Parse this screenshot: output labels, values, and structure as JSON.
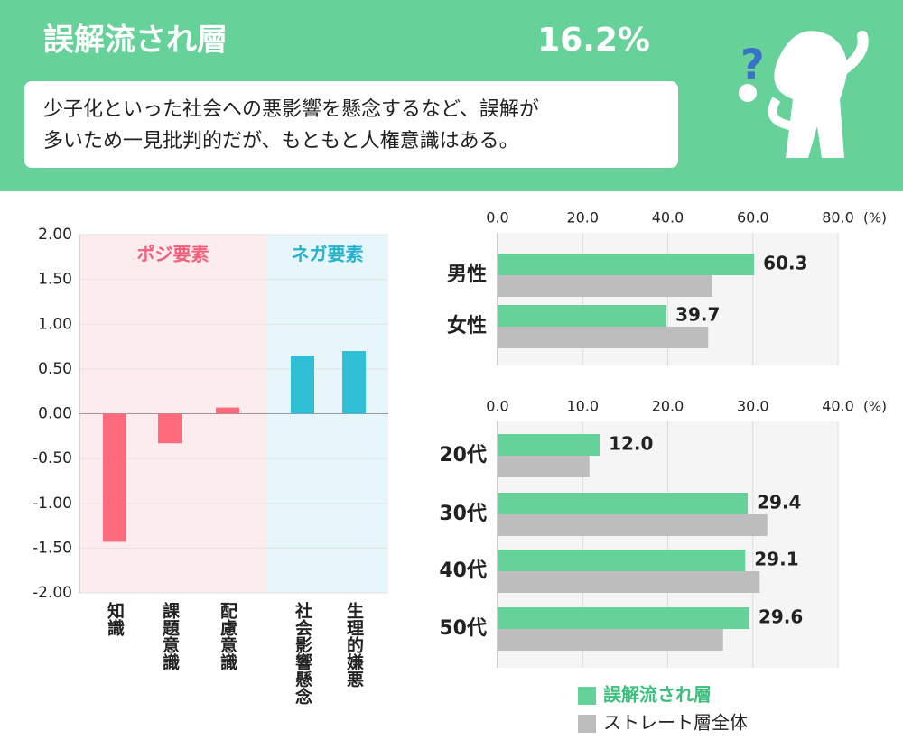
{
  "header": {
    "title": "誤解流され層",
    "share": "16.2%",
    "description": [
      "少子化といった社会への悪影響を懸念するなど、誤解が",
      "多いため一見批判的だが、もともと人権意識はある。"
    ]
  },
  "chart_data": [
    {
      "type": "bar",
      "annotations": [
        "ポジ要素",
        "ネガ要素"
      ],
      "categories": [
        "知識",
        "課題意識",
        "配慮意識",
        "社会影響懸念",
        "生理的嫌悪"
      ],
      "values": [
        -1.43,
        -0.33,
        0.07,
        0.65,
        0.7
      ],
      "colors": [
        "#ff6b7d",
        "#ff6b7d",
        "#ff6b7d",
        "#2fbfd6",
        "#2fbfd6"
      ],
      "ylim": [
        -2,
        2
      ],
      "yticks": [
        {
          "value": 2,
          "label": "2.00"
        },
        {
          "value": 1.5,
          "label": "1.50"
        },
        {
          "value": 1,
          "label": "1.00"
        },
        {
          "value": 0.5,
          "label": "0.50"
        },
        {
          "value": 0,
          "label": "0.00"
        },
        {
          "value": -0.5,
          "label": "-0.50"
        },
        {
          "value": -1,
          "label": "-1.00"
        },
        {
          "value": -1.5,
          "label": "-1.50"
        },
        {
          "value": -2,
          "label": "-2.00"
        }
      ],
      "grid": true
    },
    {
      "type": "barh",
      "unit_label": "(%)",
      "categories": [
        "男性",
        "女性"
      ],
      "series": [
        {
          "name": "誤解流され層",
          "color": "#66d29a",
          "values": [
            60.3,
            39.7
          ],
          "value_labels": [
            "60.3",
            "39.7"
          ]
        },
        {
          "name": "ストレート層全体",
          "color": "#bdbdbd",
          "values": [
            50.5,
            49.5
          ]
        }
      ],
      "xlim": [
        0,
        80
      ],
      "xticks": [
        {
          "value": 0,
          "label": "0.0"
        },
        {
          "value": 20,
          "label": "20.0"
        },
        {
          "value": 40,
          "label": "40.0"
        },
        {
          "value": 60,
          "label": "60.0"
        },
        {
          "value": 80,
          "label": "80.0"
        }
      ],
      "grid": true
    },
    {
      "type": "barh",
      "unit_label": "(%)",
      "categories": [
        "20代",
        "30代",
        "40代",
        "50代"
      ],
      "series": [
        {
          "name": "誤解流され層",
          "color": "#66d29a",
          "values": [
            12.0,
            29.4,
            29.1,
            29.6
          ],
          "value_labels": [
            "12.0",
            "29.4",
            "29.1",
            "29.6"
          ]
        },
        {
          "name": "ストレート層全体",
          "color": "#bdbdbd",
          "values": [
            10.8,
            31.7,
            30.8,
            26.5
          ]
        }
      ],
      "xlim": [
        0,
        40
      ],
      "xticks": [
        {
          "value": 0,
          "label": "0.0"
        },
        {
          "value": 10,
          "label": "10.0"
        },
        {
          "value": 20,
          "label": "20.0"
        },
        {
          "value": 30,
          "label": "30.0"
        },
        {
          "value": 40,
          "label": "40.0"
        }
      ],
      "grid": true
    }
  ]
}
